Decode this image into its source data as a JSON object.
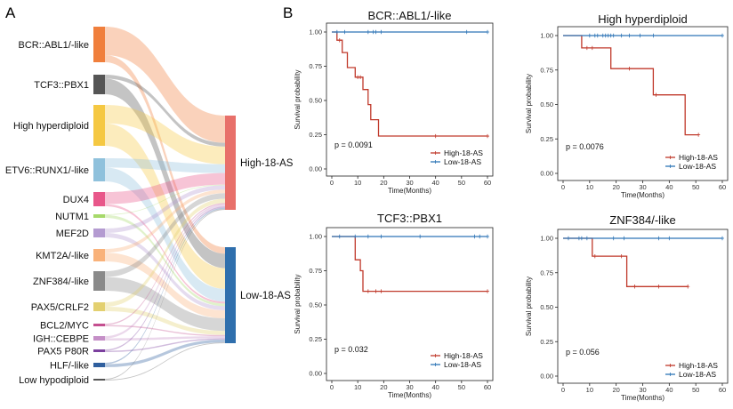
{
  "panels": {
    "a": "A",
    "b": "B"
  },
  "sankey": {
    "subtypes": [
      {
        "name": "BCR::ABL1/-like",
        "color": "#f07f3c",
        "high": 0.8
      },
      {
        "name": "TCF3::PBX1",
        "color": "#555555",
        "high": 0.2
      },
      {
        "name": "High hyperdiploid",
        "color": "#f5c842",
        "high": 0.45
      },
      {
        "name": "ETV6::RUNX1/-like",
        "color": "#8fc1dc",
        "high": 0.4
      },
      {
        "name": "DUX4",
        "color": "#e8578a",
        "high": 0.85
      },
      {
        "name": "NUTM1",
        "color": "#a6d96a",
        "high": 0.2
      },
      {
        "name": "MEF2D",
        "color": "#b49bd1",
        "high": 0.5
      },
      {
        "name": "KMT2A/-like",
        "color": "#f9b27a",
        "high": 0.3
      },
      {
        "name": "ZNF384/-like",
        "color": "#8a8a8a",
        "high": 0.3
      },
      {
        "name": "PAX5/CRLF2",
        "color": "#e3d070",
        "high": 0.5
      },
      {
        "name": "BCL2/MYC",
        "color": "#c44f8f",
        "high": 0.5
      },
      {
        "name": "IGH::CEBPE",
        "color": "#c58fc7",
        "high": 0.5
      },
      {
        "name": "PAX5 P80R",
        "color": "#7b3f9e",
        "high": 0.5
      },
      {
        "name": "HLF/-like",
        "color": "#2f5f9e",
        "high": 0.3
      },
      {
        "name": "Low hypodiploid",
        "color": "#555555",
        "high": 0.5
      }
    ],
    "targets": [
      {
        "name": "High-18-AS",
        "color": "#e8706a"
      },
      {
        "name": "Low-18-AS",
        "color": "#2f6fad"
      }
    ]
  },
  "chart_data": [
    {
      "type": "line",
      "title": "BCR::ABL1/-like",
      "xlabel": "Time(Months)",
      "ylabel": "Survival probability",
      "xlim": [
        0,
        60
      ],
      "ylim": [
        0,
        1
      ],
      "xticks": [
        "0",
        "10",
        "20",
        "30",
        "40",
        "50",
        "60"
      ],
      "yticks": [
        "0.00",
        "0.25",
        "0.50",
        "0.75",
        "1.00"
      ],
      "pvalue": "p = 0.0091",
      "legend": [
        "High-18-AS",
        "Low-18-AS"
      ],
      "series": [
        {
          "name": "High-18-AS",
          "color": "#c0392b",
          "steps": [
            [
              0,
              1
            ],
            [
              2,
              1
            ],
            [
              2,
              0.94
            ],
            [
              4,
              0.94
            ],
            [
              4,
              0.85
            ],
            [
              6,
              0.85
            ],
            [
              6,
              0.74
            ],
            [
              9,
              0.74
            ],
            [
              9,
              0.67
            ],
            [
              12,
              0.67
            ],
            [
              12,
              0.58
            ],
            [
              14,
              0.58
            ],
            [
              14,
              0.47
            ],
            [
              15,
              0.47
            ],
            [
              15,
              0.36
            ],
            [
              18,
              0.36
            ],
            [
              18,
              0.24
            ],
            [
              60,
              0.24
            ]
          ],
          "censors": [
            [
              3,
              0.94
            ],
            [
              10,
              0.67
            ],
            [
              11,
              0.67
            ],
            [
              40,
              0.24
            ],
            [
              60,
              0.24
            ]
          ]
        },
        {
          "name": "Low-18-AS",
          "color": "#2e75b6",
          "steps": [
            [
              0,
              1
            ],
            [
              60,
              1
            ]
          ],
          "censors": [
            [
              2,
              1
            ],
            [
              5,
              1
            ],
            [
              14,
              1
            ],
            [
              16,
              1
            ],
            [
              17,
              1
            ],
            [
              19,
              1
            ],
            [
              52,
              1
            ],
            [
              60,
              1
            ]
          ]
        }
      ]
    },
    {
      "type": "line",
      "title": "High hyperdiploid",
      "xlabel": "Time(Months)",
      "ylabel": "Survival probability",
      "xlim": [
        0,
        60
      ],
      "ylim": [
        0,
        1
      ],
      "xticks": [
        "0",
        "10",
        "20",
        "30",
        "40",
        "50",
        "60"
      ],
      "yticks": [
        "0.00",
        "0.25",
        "0.50",
        "0.75",
        "1.00"
      ],
      "pvalue": "p = 0.0076",
      "legend": [
        "High-18-AS",
        "Low-18-AS"
      ],
      "series": [
        {
          "name": "High-18-AS",
          "color": "#c0392b",
          "steps": [
            [
              0,
              1
            ],
            [
              7,
              1
            ],
            [
              7,
              0.91
            ],
            [
              18,
              0.91
            ],
            [
              18,
              0.76
            ],
            [
              34,
              0.76
            ],
            [
              34,
              0.57
            ],
            [
              46,
              0.57
            ],
            [
              46,
              0.28
            ],
            [
              51,
              0.28
            ]
          ],
          "censors": [
            [
              9,
              0.91
            ],
            [
              11,
              0.91
            ],
            [
              25,
              0.76
            ],
            [
              35,
              0.57
            ],
            [
              51,
              0.28
            ]
          ]
        },
        {
          "name": "Low-18-AS",
          "color": "#2e75b6",
          "steps": [
            [
              0,
              1
            ],
            [
              60,
              1
            ]
          ],
          "censors": [
            [
              10,
              1
            ],
            [
              12,
              1
            ],
            [
              13,
              1
            ],
            [
              15,
              1
            ],
            [
              16,
              1
            ],
            [
              17,
              1
            ],
            [
              18,
              1
            ],
            [
              19,
              1
            ],
            [
              22,
              1
            ],
            [
              25,
              1
            ],
            [
              29,
              1
            ],
            [
              34,
              1
            ],
            [
              60,
              1
            ]
          ]
        }
      ]
    },
    {
      "type": "line",
      "title": "TCF3::PBX1",
      "xlabel": "Time(Months)",
      "ylabel": "Survival probability",
      "xlim": [
        0,
        60
      ],
      "ylim": [
        0,
        1
      ],
      "xticks": [
        "0",
        "10",
        "20",
        "30",
        "40",
        "50",
        "60"
      ],
      "yticks": [
        "0.00",
        "0.25",
        "0.50",
        "0.75",
        "1.00"
      ],
      "pvalue": "p = 0.032",
      "legend": [
        "High-18-AS",
        "Low-18-AS"
      ],
      "series": [
        {
          "name": "High-18-AS",
          "color": "#c0392b",
          "steps": [
            [
              0,
              1
            ],
            [
              9,
              1
            ],
            [
              9,
              0.83
            ],
            [
              11,
              0.83
            ],
            [
              11,
              0.75
            ],
            [
              12,
              0.75
            ],
            [
              12,
              0.6
            ],
            [
              60,
              0.6
            ]
          ],
          "censors": [
            [
              14,
              0.6
            ],
            [
              17,
              0.6
            ],
            [
              19,
              0.6
            ],
            [
              60,
              0.6
            ]
          ]
        },
        {
          "name": "Low-18-AS",
          "color": "#2e75b6",
          "steps": [
            [
              0,
              1
            ],
            [
              60,
              1
            ]
          ],
          "censors": [
            [
              3,
              1
            ],
            [
              9,
              1
            ],
            [
              14,
              1
            ],
            [
              19,
              1
            ],
            [
              34,
              1
            ],
            [
              55,
              1
            ],
            [
              57,
              1
            ],
            [
              60,
              1
            ]
          ]
        }
      ]
    },
    {
      "type": "line",
      "title": "ZNF384/-like",
      "xlabel": "Time(Months)",
      "ylabel": "Survival probability",
      "xlim": [
        0,
        60
      ],
      "ylim": [
        0,
        1
      ],
      "xticks": [
        "0",
        "10",
        "20",
        "30",
        "40",
        "50",
        "60"
      ],
      "yticks": [
        "0.00",
        "0.25",
        "0.50",
        "0.75",
        "1.00"
      ],
      "pvalue": "p = 0.056",
      "legend": [
        "High-18-AS",
        "Low-18-AS"
      ],
      "series": [
        {
          "name": "High-18-AS",
          "color": "#c0392b",
          "steps": [
            [
              0,
              1
            ],
            [
              11,
              1
            ],
            [
              11,
              0.87
            ],
            [
              24,
              0.87
            ],
            [
              24,
              0.65
            ],
            [
              47,
              0.65
            ]
          ],
          "censors": [
            [
              12,
              0.87
            ],
            [
              22,
              0.87
            ],
            [
              27,
              0.65
            ],
            [
              36,
              0.65
            ],
            [
              47,
              0.65
            ]
          ]
        },
        {
          "name": "Low-18-AS",
          "color": "#2e75b6",
          "steps": [
            [
              0,
              1
            ],
            [
              60,
              1
            ]
          ],
          "censors": [
            [
              2,
              1
            ],
            [
              6,
              1
            ],
            [
              7,
              1
            ],
            [
              9,
              1
            ],
            [
              19,
              1
            ],
            [
              23,
              1
            ],
            [
              36,
              1
            ],
            [
              40,
              1
            ],
            [
              60,
              1
            ]
          ]
        }
      ]
    }
  ]
}
